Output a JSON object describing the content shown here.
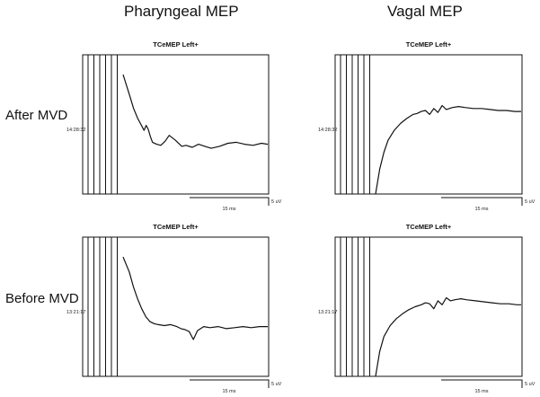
{
  "columns": [
    "Pharyngeal MEP",
    "Vagal MEP"
  ],
  "rows": [
    "After MVD",
    "Before MVD"
  ],
  "chart_data": [
    {
      "type": "line",
      "title": "TCeMEP Left+",
      "column": "Pharyngeal MEP",
      "row": "After MVD",
      "timestamp": "14:28:32",
      "scale_x_label": "15 ms",
      "scale_y_label": "5 uV",
      "stim_artifact_count": 6,
      "x": [
        0,
        0.3,
        0.5,
        0.7,
        0.9,
        1.0,
        1.1,
        1.2,
        1.3,
        1.4,
        1.6,
        1.8,
        2.0,
        2.2,
        2.5,
        2.8,
        3.0,
        3.3,
        3.6,
        3.9,
        4.2,
        4.6,
        5.0,
        5.4,
        5.8,
        6.2,
        6.6,
        6.9
      ],
      "y": [
        6.0,
        4.0,
        2.6,
        1.6,
        0.8,
        0.4,
        0.9,
        0.5,
        -0.2,
        -0.8,
        -1.0,
        -1.1,
        -0.7,
        -0.1,
        -0.6,
        -1.2,
        -1.1,
        -1.3,
        -1.0,
        -1.2,
        -1.4,
        -1.2,
        -0.9,
        -0.8,
        -1.0,
        -1.1,
        -0.9,
        -1.0
      ],
      "ylim": [
        -6,
        8
      ]
    },
    {
      "type": "line",
      "title": "TCeMEP Left+",
      "column": "Vagal MEP",
      "row": "After MVD",
      "timestamp": "14:28:32",
      "scale_x_label": "15 ms",
      "scale_y_label": "5 uV",
      "stim_artifact_count": 6,
      "x": [
        0,
        0.2,
        0.4,
        0.6,
        0.9,
        1.2,
        1.5,
        1.8,
        2.0,
        2.2,
        2.4,
        2.6,
        2.8,
        3.0,
        3.2,
        3.4,
        3.7,
        4.0,
        4.3,
        4.7,
        5.1,
        5.5,
        5.9,
        6.3,
        6.7,
        7.0
      ],
      "y": [
        -6,
        -3.5,
        -1.8,
        -0.6,
        0.4,
        1.1,
        1.6,
        2.0,
        2.1,
        2.3,
        2.4,
        2.0,
        2.6,
        2.2,
        2.9,
        2.5,
        2.7,
        2.8,
        2.7,
        2.6,
        2.6,
        2.5,
        2.4,
        2.4,
        2.3,
        2.3
      ],
      "ylim": [
        -6,
        8
      ]
    },
    {
      "type": "line",
      "title": "TCeMEP Left+",
      "column": "Pharyngeal MEP",
      "row": "Before MVD",
      "timestamp": "13:21:17",
      "scale_x_label": "15 ms",
      "scale_y_label": "5 uV",
      "stim_artifact_count": 6,
      "x": [
        0,
        0.3,
        0.5,
        0.7,
        0.9,
        1.1,
        1.3,
        1.5,
        1.7,
        2.0,
        2.3,
        2.6,
        2.8,
        3.0,
        3.2,
        3.4,
        3.6,
        3.9,
        4.2,
        4.6,
        5.0,
        5.4,
        5.8,
        6.2,
        6.6,
        7.0
      ],
      "y": [
        6.0,
        4.5,
        3.0,
        1.8,
        0.8,
        0.0,
        -0.5,
        -0.7,
        -0.8,
        -0.9,
        -0.8,
        -1.0,
        -1.2,
        -1.3,
        -1.5,
        -2.3,
        -1.4,
        -1.0,
        -1.1,
        -1.0,
        -1.2,
        -1.1,
        -1.0,
        -1.1,
        -1.0,
        -1.0
      ],
      "ylim": [
        -6,
        8
      ]
    },
    {
      "type": "line",
      "title": "TCeMEP Left+",
      "column": "Vagal MEP",
      "row": "Before MVD",
      "timestamp": "13:21:17",
      "scale_x_label": "15 ms",
      "scale_y_label": "5 uV",
      "stim_artifact_count": 6,
      "x": [
        0,
        0.2,
        0.4,
        0.7,
        1.0,
        1.3,
        1.6,
        1.9,
        2.2,
        2.4,
        2.6,
        2.8,
        3.0,
        3.2,
        3.4,
        3.6,
        3.8,
        4.1,
        4.4,
        4.8,
        5.2,
        5.6,
        6.0,
        6.4,
        6.8,
        7.0
      ],
      "y": [
        -6,
        -3.5,
        -2.0,
        -0.9,
        -0.2,
        0.3,
        0.7,
        1.0,
        1.2,
        1.4,
        1.3,
        0.8,
        1.6,
        1.2,
        1.9,
        1.6,
        1.7,
        1.8,
        1.7,
        1.6,
        1.5,
        1.4,
        1.3,
        1.3,
        1.2,
        1.2
      ],
      "ylim": [
        -6,
        8
      ]
    }
  ]
}
